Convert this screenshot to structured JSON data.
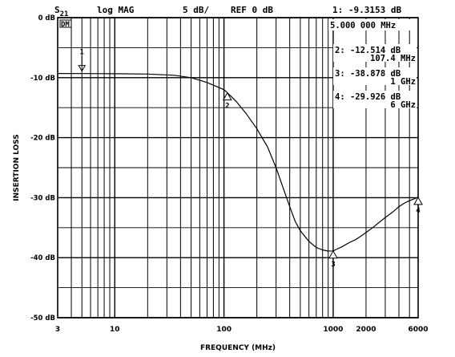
{
  "header": {
    "param_main": "S",
    "param_sub": "21",
    "format": "log MAG",
    "scale": "5 dB/",
    "ref": "REF 0 dB",
    "active_marker": "1: -9.3153 dB",
    "active_marker_freq": "5.000 000 MHz",
    "corner_box": "DM"
  },
  "markers": [
    {
      "id": "1",
      "x": 5,
      "y": -9.3153
    },
    {
      "id": "2",
      "x": 107.4,
      "y": -12.514,
      "label_db": "2: -12.514 dB",
      "label_freq": "107.4 MHz"
    },
    {
      "id": "3",
      "x": 1000,
      "y": -38.878,
      "label_db": "3: -38.878 dB",
      "label_freq": "1 GHz"
    },
    {
      "id": "4",
      "x": 6000,
      "y": -29.926,
      "label_db": "4: -29.926 dB",
      "label_freq": "6 GHz"
    }
  ],
  "chart_data": {
    "type": "line",
    "xscale": "log",
    "xlim": [
      3,
      6000
    ],
    "ylim": [
      -50,
      0
    ],
    "xlabel": "FREQUENCY (MHz)",
    "ylabel": "INSERTION LOSS",
    "grid": true,
    "legend": "none",
    "yticks": [
      {
        "v": 0,
        "label": "0 dB"
      },
      {
        "v": -10,
        "label": "-10 dB"
      },
      {
        "v": -20,
        "label": "-20 dB"
      },
      {
        "v": -30,
        "label": "-30 dB"
      },
      {
        "v": -40,
        "label": "-40 dB"
      },
      {
        "v": -50,
        "label": "-50 dB"
      }
    ],
    "xticks": [
      {
        "v": 3,
        "label": "3"
      },
      {
        "v": 10,
        "label": "10"
      },
      {
        "v": 100,
        "label": "100"
      },
      {
        "v": 1000,
        "label": "1000"
      },
      {
        "v": 2000,
        "label": "2000"
      },
      {
        "v": 6000,
        "label": "6000"
      }
    ],
    "series": [
      {
        "x": [
          3,
          5,
          10,
          20,
          35,
          50,
          70,
          100,
          107.4,
          130,
          160,
          200,
          250,
          300,
          350,
          400,
          450,
          500,
          600,
          700,
          800,
          900,
          1000,
          1100,
          1200,
          1400,
          1600,
          1800,
          2000,
          2300,
          2600,
          3000,
          3500,
          4000,
          4500,
          5000,
          5500,
          6000
        ],
        "y": [
          -9.3,
          -9.3153,
          -9.35,
          -9.4,
          -9.6,
          -10.0,
          -10.8,
          -12.0,
          -12.514,
          -14.0,
          -16.0,
          -18.5,
          -21.5,
          -25.0,
          -28.5,
          -31.5,
          -34.0,
          -35.5,
          -37.3,
          -38.3,
          -38.7,
          -38.9,
          -38.878,
          -38.5,
          -38.2,
          -37.5,
          -37.0,
          -36.4,
          -35.8,
          -35.0,
          -34.2,
          -33.3,
          -32.4,
          -31.5,
          -30.9,
          -30.5,
          -30.2,
          -29.926
        ]
      }
    ]
  }
}
